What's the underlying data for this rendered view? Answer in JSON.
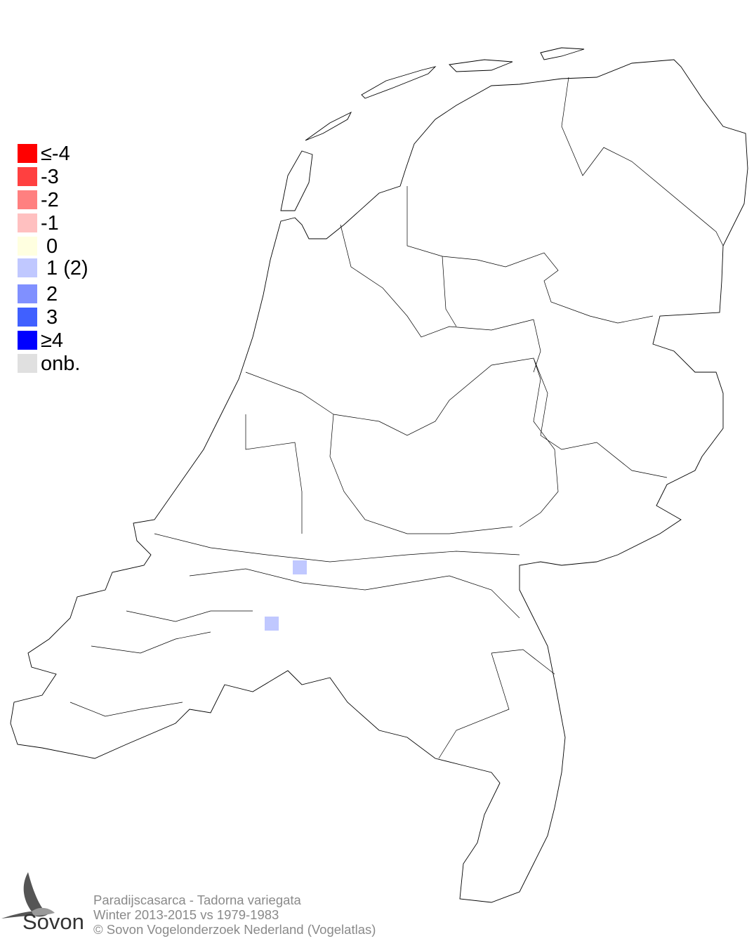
{
  "legend": {
    "items": [
      {
        "label": "≤-4",
        "color": "#ff0000"
      },
      {
        "label": "-3",
        "color": "#ff4040"
      },
      {
        "label": "-2",
        "color": "#ff8080"
      },
      {
        "label": "-1",
        "color": "#ffc0c0"
      },
      {
        "label": " 0",
        "color": "#ffffe0"
      },
      {
        "label": " 1 (2)",
        "color": "#c0c8ff"
      },
      {
        "label": " 2",
        "color": "#8090ff"
      },
      {
        "label": " 3",
        "color": "#4060ff"
      },
      {
        "label": "≥4",
        "color": "#0000ff"
      },
      {
        "label": "onb.",
        "color": "#e0e0e0"
      }
    ]
  },
  "map": {
    "cells": [
      {
        "value": 1,
        "color": "#c0c8ff"
      },
      {
        "value": 1,
        "color": "#c0c8ff"
      }
    ]
  },
  "footer": {
    "species": "Paradijscasarca - Tadorna variegata",
    "period": "Winter 2013-2015 vs 1979-1983",
    "copyright": "© Sovon Vogelonderzoek Nederland (Vogelatlas)"
  },
  "logo": {
    "text": "Sovon"
  }
}
